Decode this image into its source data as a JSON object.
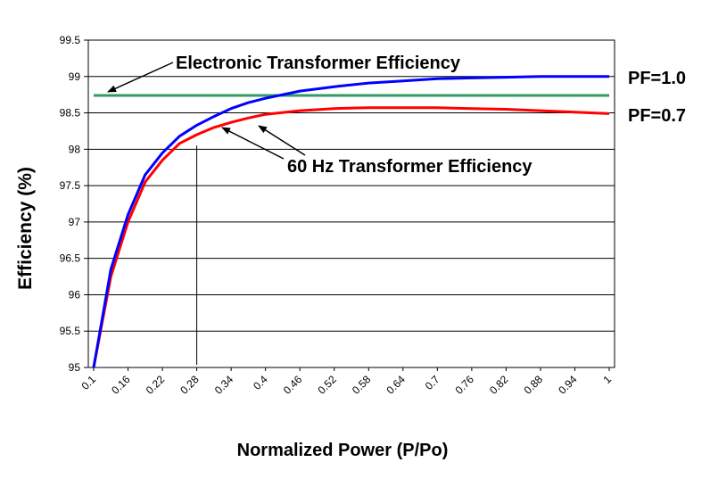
{
  "chart_data": {
    "type": "line",
    "title": "",
    "xlabel": "Normalized Power (P/Po)",
    "ylabel": "Efficiency (%)",
    "ylim": [
      95,
      99.5
    ],
    "yticks": [
      "95",
      "95.5",
      "96",
      "96.5",
      "97",
      "97.5",
      "98",
      "98.5",
      "99",
      "99.5"
    ],
    "xticks": [
      "0.1",
      "0.16",
      "0.22",
      "0.28",
      "0.34",
      "0.4",
      "0.46",
      "0.52",
      "0.58",
      "0.64",
      "0.7",
      "0.76",
      "0.82",
      "0.88",
      "0.94",
      "1"
    ],
    "x_tick_values": [
      0.1,
      0.16,
      0.22,
      0.28,
      0.34,
      0.4,
      0.46,
      0.52,
      0.58,
      0.64,
      0.7,
      0.76,
      0.82,
      0.88,
      0.94,
      1.0
    ],
    "grid": "horizontal",
    "reference_line_x": 0.28,
    "series": [
      {
        "name": "PF=1.0",
        "color": "#0000ff",
        "x": [
          0.1,
          0.13,
          0.16,
          0.19,
          0.22,
          0.25,
          0.28,
          0.31,
          0.34,
          0.37,
          0.4,
          0.46,
          0.52,
          0.58,
          0.64,
          0.7,
          0.76,
          0.82,
          0.88,
          0.94,
          1.0
        ],
        "y": [
          95.0,
          96.35,
          97.1,
          97.65,
          97.95,
          98.18,
          98.33,
          98.45,
          98.56,
          98.64,
          98.7,
          98.8,
          98.86,
          98.91,
          98.94,
          98.97,
          98.98,
          98.99,
          99.0,
          99.0,
          99.0
        ]
      },
      {
        "name": "PF=0.7",
        "color": "#ff0000",
        "x": [
          0.1,
          0.13,
          0.16,
          0.19,
          0.22,
          0.25,
          0.28,
          0.31,
          0.34,
          0.37,
          0.4,
          0.46,
          0.52,
          0.58,
          0.64,
          0.7,
          0.76,
          0.82,
          0.88,
          0.94,
          1.0
        ],
        "y": [
          95.0,
          96.25,
          97.0,
          97.55,
          97.85,
          98.08,
          98.2,
          98.3,
          98.37,
          98.43,
          98.48,
          98.53,
          98.56,
          98.57,
          98.57,
          98.57,
          98.56,
          98.55,
          98.53,
          98.51,
          98.49
        ]
      },
      {
        "name": "Electronic Transformer Efficiency",
        "color": "#339966",
        "x": [
          0.1,
          1.0
        ],
        "y": [
          98.74,
          98.74
        ]
      }
    ],
    "annotations": {
      "electronic": "Electronic Transformer Efficiency",
      "sixty_hz": "60 Hz Transformer Efficiency",
      "pf1": "PF=1.0",
      "pf07": "PF=0.7"
    }
  }
}
